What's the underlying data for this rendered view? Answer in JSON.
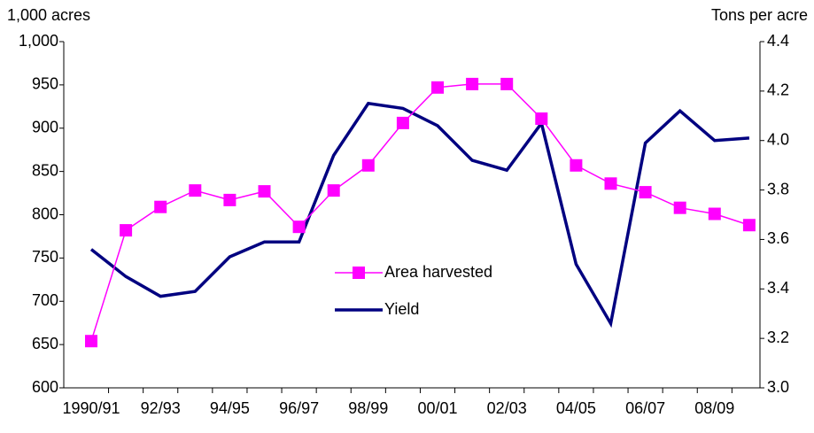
{
  "chart_data": {
    "type": "line",
    "y_label": "1,000 acres",
    "y2_label": "Tons per acre",
    "categories": [
      "1990/91",
      null,
      "92/93",
      null,
      "94/95",
      null,
      "96/97",
      null,
      "98/99",
      null,
      "00/01",
      null,
      "02/03",
      null,
      "04/05",
      null,
      "06/07",
      null,
      "08/09",
      null
    ],
    "series": [
      {
        "name": "Area harvested",
        "color": "#ff00ff",
        "marker": "square",
        "values": [
          654,
          782,
          809,
          828,
          817,
          827,
          786,
          828,
          857,
          906,
          947,
          951,
          951,
          911,
          857,
          836,
          826,
          808,
          801,
          788
        ]
      },
      {
        "name": "Yield",
        "color": "#000080",
        "axis": "y2",
        "values": [
          3.56,
          3.45,
          3.37,
          3.39,
          3.53,
          3.59,
          3.59,
          3.94,
          4.15,
          4.13,
          4.06,
          3.92,
          3.88,
          4.07,
          3.5,
          3.26,
          3.99,
          4.12,
          4.0,
          4.01
        ]
      }
    ],
    "ylim": [
      600,
      1000
    ],
    "yticks": [
      600,
      650,
      700,
      750,
      800,
      850,
      900,
      950,
      {
        "value": 1000,
        "label": "1,000"
      }
    ],
    "y2lim": [
      3.0,
      4.4
    ],
    "y2ticks": [
      {
        "value": 3.0,
        "label": "3.0"
      },
      3.2,
      3.4,
      3.6,
      3.8,
      {
        "value": 4.0,
        "label": "4.0"
      },
      4.2,
      4.4
    ],
    "grid": false
  }
}
